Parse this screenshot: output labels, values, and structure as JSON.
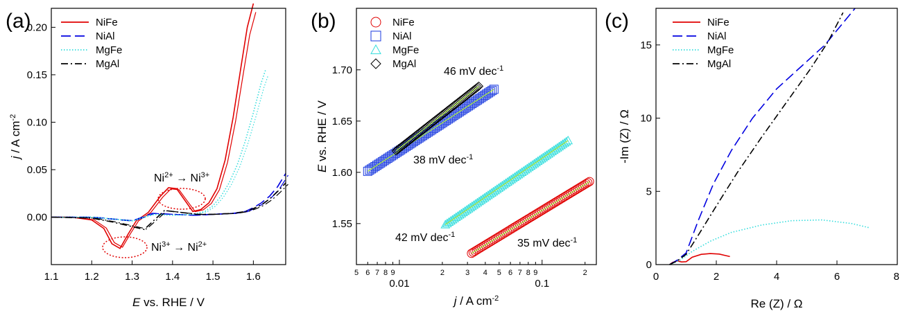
{
  "chart_data": [
    {
      "panel": "(a)",
      "type": "line",
      "xlabel_pre": "E",
      "xlabel_post": " vs. RHE / V",
      "ylabel_pre": "j",
      "ylabel_post": " / A cm",
      "ylabel_sup": "-2",
      "xlim": [
        1.1,
        1.68
      ],
      "ylim": [
        -0.05,
        0.22
      ],
      "xticks": [
        "1.1",
        "1.2",
        "1.3",
        "1.4",
        "1.5",
        "1.6"
      ],
      "yticks": [
        "0.00",
        "0.05",
        "0.10",
        "0.15",
        "0.20"
      ],
      "legend": [
        "NiFe",
        "NiAl",
        "MgFe",
        "MgAl"
      ],
      "annotations": [
        {
          "a": "Ni",
          "s1": "2+",
          "arrow": " → ",
          "b": "Ni",
          "s2": "3+"
        },
        {
          "a": "Ni",
          "s1": "3+",
          "arrow": " → ",
          "b": "Ni",
          "s2": "2+"
        }
      ],
      "series": [
        {
          "name": "NiFe",
          "color": "#e00000",
          "style": "solid",
          "x": [
            1.1,
            1.15,
            1.2,
            1.23,
            1.25,
            1.27,
            1.29,
            1.31,
            1.34,
            1.37,
            1.39,
            1.41,
            1.43,
            1.45,
            1.47,
            1.49,
            1.51,
            1.53,
            1.55,
            1.57,
            1.585,
            1.6
          ],
          "y": [
            0.0,
            0.0,
            -0.003,
            -0.012,
            -0.028,
            -0.033,
            -0.018,
            -0.004,
            0.005,
            0.022,
            0.031,
            0.03,
            0.018,
            0.006,
            0.008,
            0.015,
            0.03,
            0.06,
            0.105,
            0.16,
            0.2,
            0.225
          ]
        },
        {
          "name": "NiAl",
          "color": "#0000e0",
          "style": "dash",
          "x": [
            1.1,
            1.2,
            1.3,
            1.35,
            1.4,
            1.45,
            1.5,
            1.55,
            1.58,
            1.6,
            1.62,
            1.64,
            1.66,
            1.68
          ],
          "y": [
            0.0,
            0.0,
            -0.004,
            0.004,
            0.003,
            0.002,
            0.003,
            0.004,
            0.006,
            0.01,
            0.015,
            0.022,
            0.032,
            0.046
          ]
        },
        {
          "name": "MgFe",
          "color": "#33dddd",
          "style": "dot",
          "x": [
            1.1,
            1.2,
            1.3,
            1.35,
            1.4,
            1.45,
            1.48,
            1.5,
            1.52,
            1.54,
            1.56,
            1.58,
            1.6,
            1.62,
            1.63
          ],
          "y": [
            0.0,
            0.0,
            -0.004,
            0.003,
            0.002,
            0.003,
            0.006,
            0.012,
            0.022,
            0.036,
            0.055,
            0.08,
            0.11,
            0.142,
            0.155
          ]
        },
        {
          "name": "MgAl",
          "color": "#000000",
          "style": "dashdot",
          "x": [
            1.1,
            1.2,
            1.25,
            1.3,
            1.33,
            1.38,
            1.42,
            1.46,
            1.5,
            1.55,
            1.58,
            1.6,
            1.62,
            1.64,
            1.66,
            1.68
          ],
          "y": [
            0.0,
            -0.001,
            -0.005,
            -0.01,
            -0.013,
            0.007,
            0.005,
            0.003,
            0.003,
            0.004,
            0.006,
            0.009,
            0.013,
            0.019,
            0.027,
            0.036
          ]
        }
      ]
    },
    {
      "panel": "(b)",
      "type": "scatter",
      "xscale": "log",
      "xlabel_pre": "j",
      "xlabel_post": " / A cm",
      "xlabel_sup": "-2",
      "ylabel_pre": "E",
      "ylabel_post": " vs. RHE / V",
      "xlim": [
        0.005,
        0.24
      ],
      "ylim": [
        1.51,
        1.76
      ],
      "xticks": [
        "0.01",
        "0.1"
      ],
      "xminor": [
        {
          "v": 0.005,
          "t": "5"
        },
        {
          "v": 0.006,
          "t": "6"
        },
        {
          "v": 0.007,
          "t": "7"
        },
        {
          "v": 0.008,
          "t": "8"
        },
        {
          "v": 0.009,
          "t": "9"
        },
        {
          "v": 0.02,
          "t": "2"
        },
        {
          "v": 0.03,
          "t": "3"
        },
        {
          "v": 0.04,
          "t": "4"
        },
        {
          "v": 0.05,
          "t": "5"
        },
        {
          "v": 0.06,
          "t": "6"
        },
        {
          "v": 0.07,
          "t": "7"
        },
        {
          "v": 0.08,
          "t": "8"
        },
        {
          "v": 0.09,
          "t": "9"
        },
        {
          "v": 0.2,
          "t": "2"
        }
      ],
      "yticks": [
        "1.55",
        "1.60",
        "1.65",
        "1.70"
      ],
      "legend": [
        "NiFe",
        "NiAl",
        "MgFe",
        "MgAl"
      ],
      "tafel_labels": [
        {
          "series": "MgAl",
          "value": "46 mV dec",
          "sup": "-1"
        },
        {
          "series": "NiAl",
          "value": "38 mV dec",
          "sup": "-1"
        },
        {
          "series": "MgFe",
          "value": "42 mV dec",
          "sup": "-1"
        },
        {
          "series": "NiFe",
          "value": "35 mV dec",
          "sup": "-1"
        }
      ],
      "series": [
        {
          "name": "NiFe",
          "marker": "circle",
          "color": "#e00000",
          "x_start": 0.032,
          "x_end": 0.215,
          "y_start": 1.521,
          "y_end": 1.591
        },
        {
          "name": "NiAl",
          "marker": "square",
          "color": "#1a3adf",
          "x_start": 0.006,
          "x_end": 0.046,
          "y_start": 1.601,
          "y_end": 1.681
        },
        {
          "name": "MgFe",
          "marker": "triangle",
          "color": "#33dddd",
          "x_start": 0.021,
          "x_end": 0.152,
          "y_start": 1.549,
          "y_end": 1.631
        },
        {
          "name": "MgAl",
          "marker": "diamond",
          "color": "#000000",
          "x_start": 0.0095,
          "x_end": 0.036,
          "y_start": 1.621,
          "y_end": 1.684
        }
      ]
    },
    {
      "panel": "(c)",
      "type": "line",
      "xlabel": "Re (Z) / Ω",
      "ylabel": "-Im (Z) / Ω",
      "xlim": [
        0,
        8
      ],
      "ylim": [
        0,
        17.5
      ],
      "xticks": [
        "0",
        "2",
        "4",
        "6",
        "8"
      ],
      "yticks": [
        "0",
        "5",
        "10",
        "15"
      ],
      "legend": [
        "NiFe",
        "NiAl",
        "MgFe",
        "MgAl"
      ],
      "series": [
        {
          "name": "NiFe",
          "color": "#e00000",
          "style": "solid",
          "x": [
            0.45,
            0.55,
            0.7,
            0.85,
            1.0,
            1.2,
            1.5,
            1.8,
            2.1,
            2.3,
            2.45
          ],
          "y": [
            0.0,
            0.15,
            0.25,
            0.18,
            0.2,
            0.5,
            0.7,
            0.75,
            0.72,
            0.62,
            0.55
          ]
        },
        {
          "name": "NiAl",
          "color": "#0000e0",
          "style": "dash",
          "x": [
            0.45,
            0.7,
            1.0,
            1.4,
            1.9,
            2.5,
            3.2,
            4.0,
            4.8,
            5.6,
            6.6
          ],
          "y": [
            0.0,
            0.3,
            0.8,
            3.0,
            5.5,
            7.8,
            10.0,
            12.0,
            13.5,
            15.0,
            17.5
          ]
        },
        {
          "name": "MgFe",
          "color": "#33dddd",
          "style": "dot",
          "x": [
            0.45,
            0.8,
            1.2,
            1.8,
            2.5,
            3.5,
            4.5,
            5.5,
            6.5,
            7.1
          ],
          "y": [
            0.0,
            0.3,
            0.9,
            1.6,
            2.2,
            2.7,
            3.0,
            3.05,
            2.8,
            2.5
          ]
        },
        {
          "name": "MgAl",
          "color": "#000000",
          "style": "dashdot",
          "x": [
            0.45,
            0.7,
            1.0,
            1.4,
            2.0,
            2.7,
            3.5,
            4.3,
            5.1,
            5.7,
            6.2
          ],
          "y": [
            0.0,
            0.25,
            0.7,
            2.0,
            4.0,
            6.3,
            8.7,
            11.0,
            13.3,
            15.2,
            17.2
          ]
        }
      ]
    }
  ]
}
